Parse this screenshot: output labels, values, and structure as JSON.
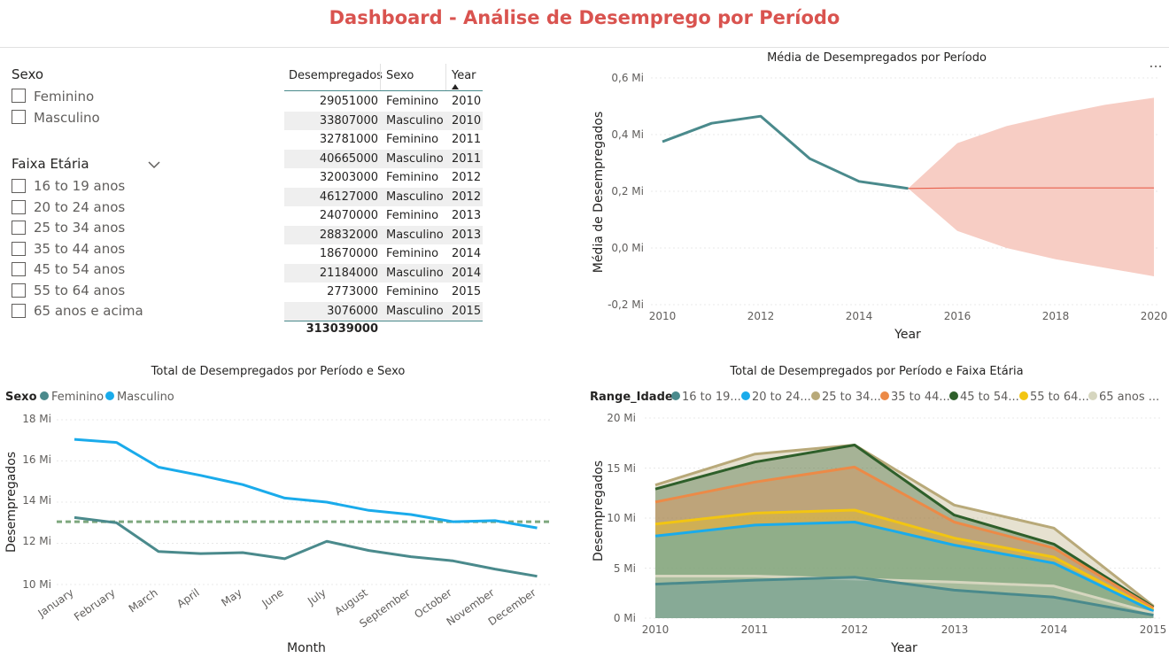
{
  "header": {
    "title": "Dashboard - Análise de Desemprego por Período"
  },
  "slicers": {
    "sex": {
      "title": "Sexo",
      "options": [
        "Feminino",
        "Masculino"
      ]
    },
    "age": {
      "title": "Faixa Etária",
      "options": [
        "16 to 19 anos",
        "20 to 24 anos",
        "25 to 34 anos",
        "35 to 44 anos",
        "45 to 54 anos",
        "55 to 64 anos",
        "65 anos e acima"
      ]
    }
  },
  "table": {
    "headers": [
      "Desempregados",
      "Sexo",
      "Year"
    ],
    "rows": [
      [
        "29051000",
        "Feminino",
        "2010"
      ],
      [
        "33807000",
        "Masculino",
        "2010"
      ],
      [
        "32781000",
        "Feminino",
        "2011"
      ],
      [
        "40665000",
        "Masculino",
        "2011"
      ],
      [
        "32003000",
        "Feminino",
        "2012"
      ],
      [
        "46127000",
        "Masculino",
        "2012"
      ],
      [
        "24070000",
        "Feminino",
        "2013"
      ],
      [
        "28832000",
        "Masculino",
        "2013"
      ],
      [
        "18670000",
        "Feminino",
        "2014"
      ],
      [
        "21184000",
        "Masculino",
        "2014"
      ],
      [
        "2773000",
        "Feminino",
        "2015"
      ],
      [
        "3076000",
        "Masculino",
        "2015"
      ]
    ],
    "total": "313039000"
  },
  "more_options": "...",
  "chart_data": [
    {
      "type": "line",
      "title": "Média de Desempregados por Período",
      "xlabel": "Year",
      "ylabel": "Média de Desempregados",
      "x_ticks": [
        "2010",
        "2012",
        "2014",
        "2016",
        "2018",
        "2020"
      ],
      "y_ticks": [
        "0,6 Mi",
        "0,4 Mi",
        "0,2 Mi",
        "0,0 Mi",
        "-0,2 Mi"
      ],
      "xlim": [
        2010,
        2020
      ],
      "ylim": [
        -0.2,
        0.6
      ],
      "series": [
        {
          "name": "Média",
          "x": [
            2010,
            2011,
            2012,
            2013,
            2014,
            2015
          ],
          "values": [
            0.375,
            0.44,
            0.465,
            0.315,
            0.235,
            0.21
          ]
        }
      ],
      "forecast": {
        "x": [
          2015,
          2016,
          2017,
          2018,
          2019,
          2020
        ],
        "values": [
          0.21,
          0.212,
          0.212,
          0.212,
          0.212,
          0.212
        ],
        "upper": [
          0.21,
          0.37,
          0.43,
          0.47,
          0.505,
          0.53
        ],
        "lower": [
          0.21,
          0.06,
          0.0,
          -0.04,
          -0.07,
          -0.1
        ]
      },
      "colors": {
        "line": "#4a8a8c",
        "forecast": "#e8604c",
        "band": "#f7cdc4"
      }
    },
    {
      "type": "line",
      "title": "Total de Desempregados por Período e Sexo",
      "xlabel": "Month",
      "ylabel": "Desempregados",
      "legend_title": "Sexo",
      "categories": [
        "January",
        "February",
        "March",
        "April",
        "May",
        "June",
        "July",
        "August",
        "September",
        "October",
        "November",
        "December"
      ],
      "y_ticks": [
        "18 Mi",
        "16 Mi",
        "14 Mi",
        "12 Mi",
        "10 Mi"
      ],
      "ylim": [
        10,
        18
      ],
      "series": [
        {
          "name": "Feminino",
          "color": "#4a8a8c",
          "values": [
            13.25,
            13.0,
            11.6,
            11.5,
            11.55,
            11.25,
            12.1,
            11.65,
            11.35,
            11.15,
            10.75,
            10.4
          ]
        },
        {
          "name": "Masculino",
          "color": "#1aabeb",
          "values": [
            17.05,
            16.9,
            15.7,
            15.3,
            14.85,
            14.2,
            14.0,
            13.6,
            13.4,
            13.05,
            13.1,
            12.75
          ]
        }
      ],
      "reference_line": {
        "value": 13.05,
        "color": "#7ea87e"
      }
    },
    {
      "type": "area",
      "title": "Total de Desempregados por Período e Faixa Etária",
      "xlabel": "Year",
      "ylabel": "Desempregados",
      "legend_title": "Range_Idade",
      "x": [
        "2010",
        "2011",
        "2012",
        "2013",
        "2014",
        "2015"
      ],
      "y_ticks": [
        "20 Mi",
        "15 Mi",
        "10 Mi",
        "5 Mi",
        "0 Mi"
      ],
      "ylim": [
        0,
        20
      ],
      "series": [
        {
          "name": "16 to 19...",
          "color": "#4a8a8c",
          "values": [
            3.4,
            3.8,
            4.1,
            2.8,
            2.1,
            0.3
          ]
        },
        {
          "name": "20 to 24...",
          "color": "#1aabeb",
          "values": [
            8.2,
            9.3,
            9.6,
            7.3,
            5.5,
            0.7
          ]
        },
        {
          "name": "25 to 34...",
          "color": "#b8a979",
          "values": [
            13.3,
            16.4,
            17.3,
            11.3,
            9.0,
            1.2
          ]
        },
        {
          "name": "35 to 44...",
          "color": "#ec8a47",
          "values": [
            11.6,
            13.6,
            15.1,
            9.6,
            7.0,
            1.0
          ]
        },
        {
          "name": "45 to 54...",
          "color": "#2e5f2a",
          "values": [
            12.9,
            15.6,
            17.3,
            10.3,
            7.4,
            1.1
          ]
        },
        {
          "name": "55 to 64...",
          "color": "#f2c512",
          "values": [
            9.4,
            10.5,
            10.8,
            8.0,
            6.1,
            0.8
          ]
        },
        {
          "name": "65 anos ...",
          "color": "#d6d6bf",
          "values": [
            4.2,
            4.2,
            3.9,
            3.6,
            3.2,
            0.5
          ]
        }
      ]
    }
  ]
}
